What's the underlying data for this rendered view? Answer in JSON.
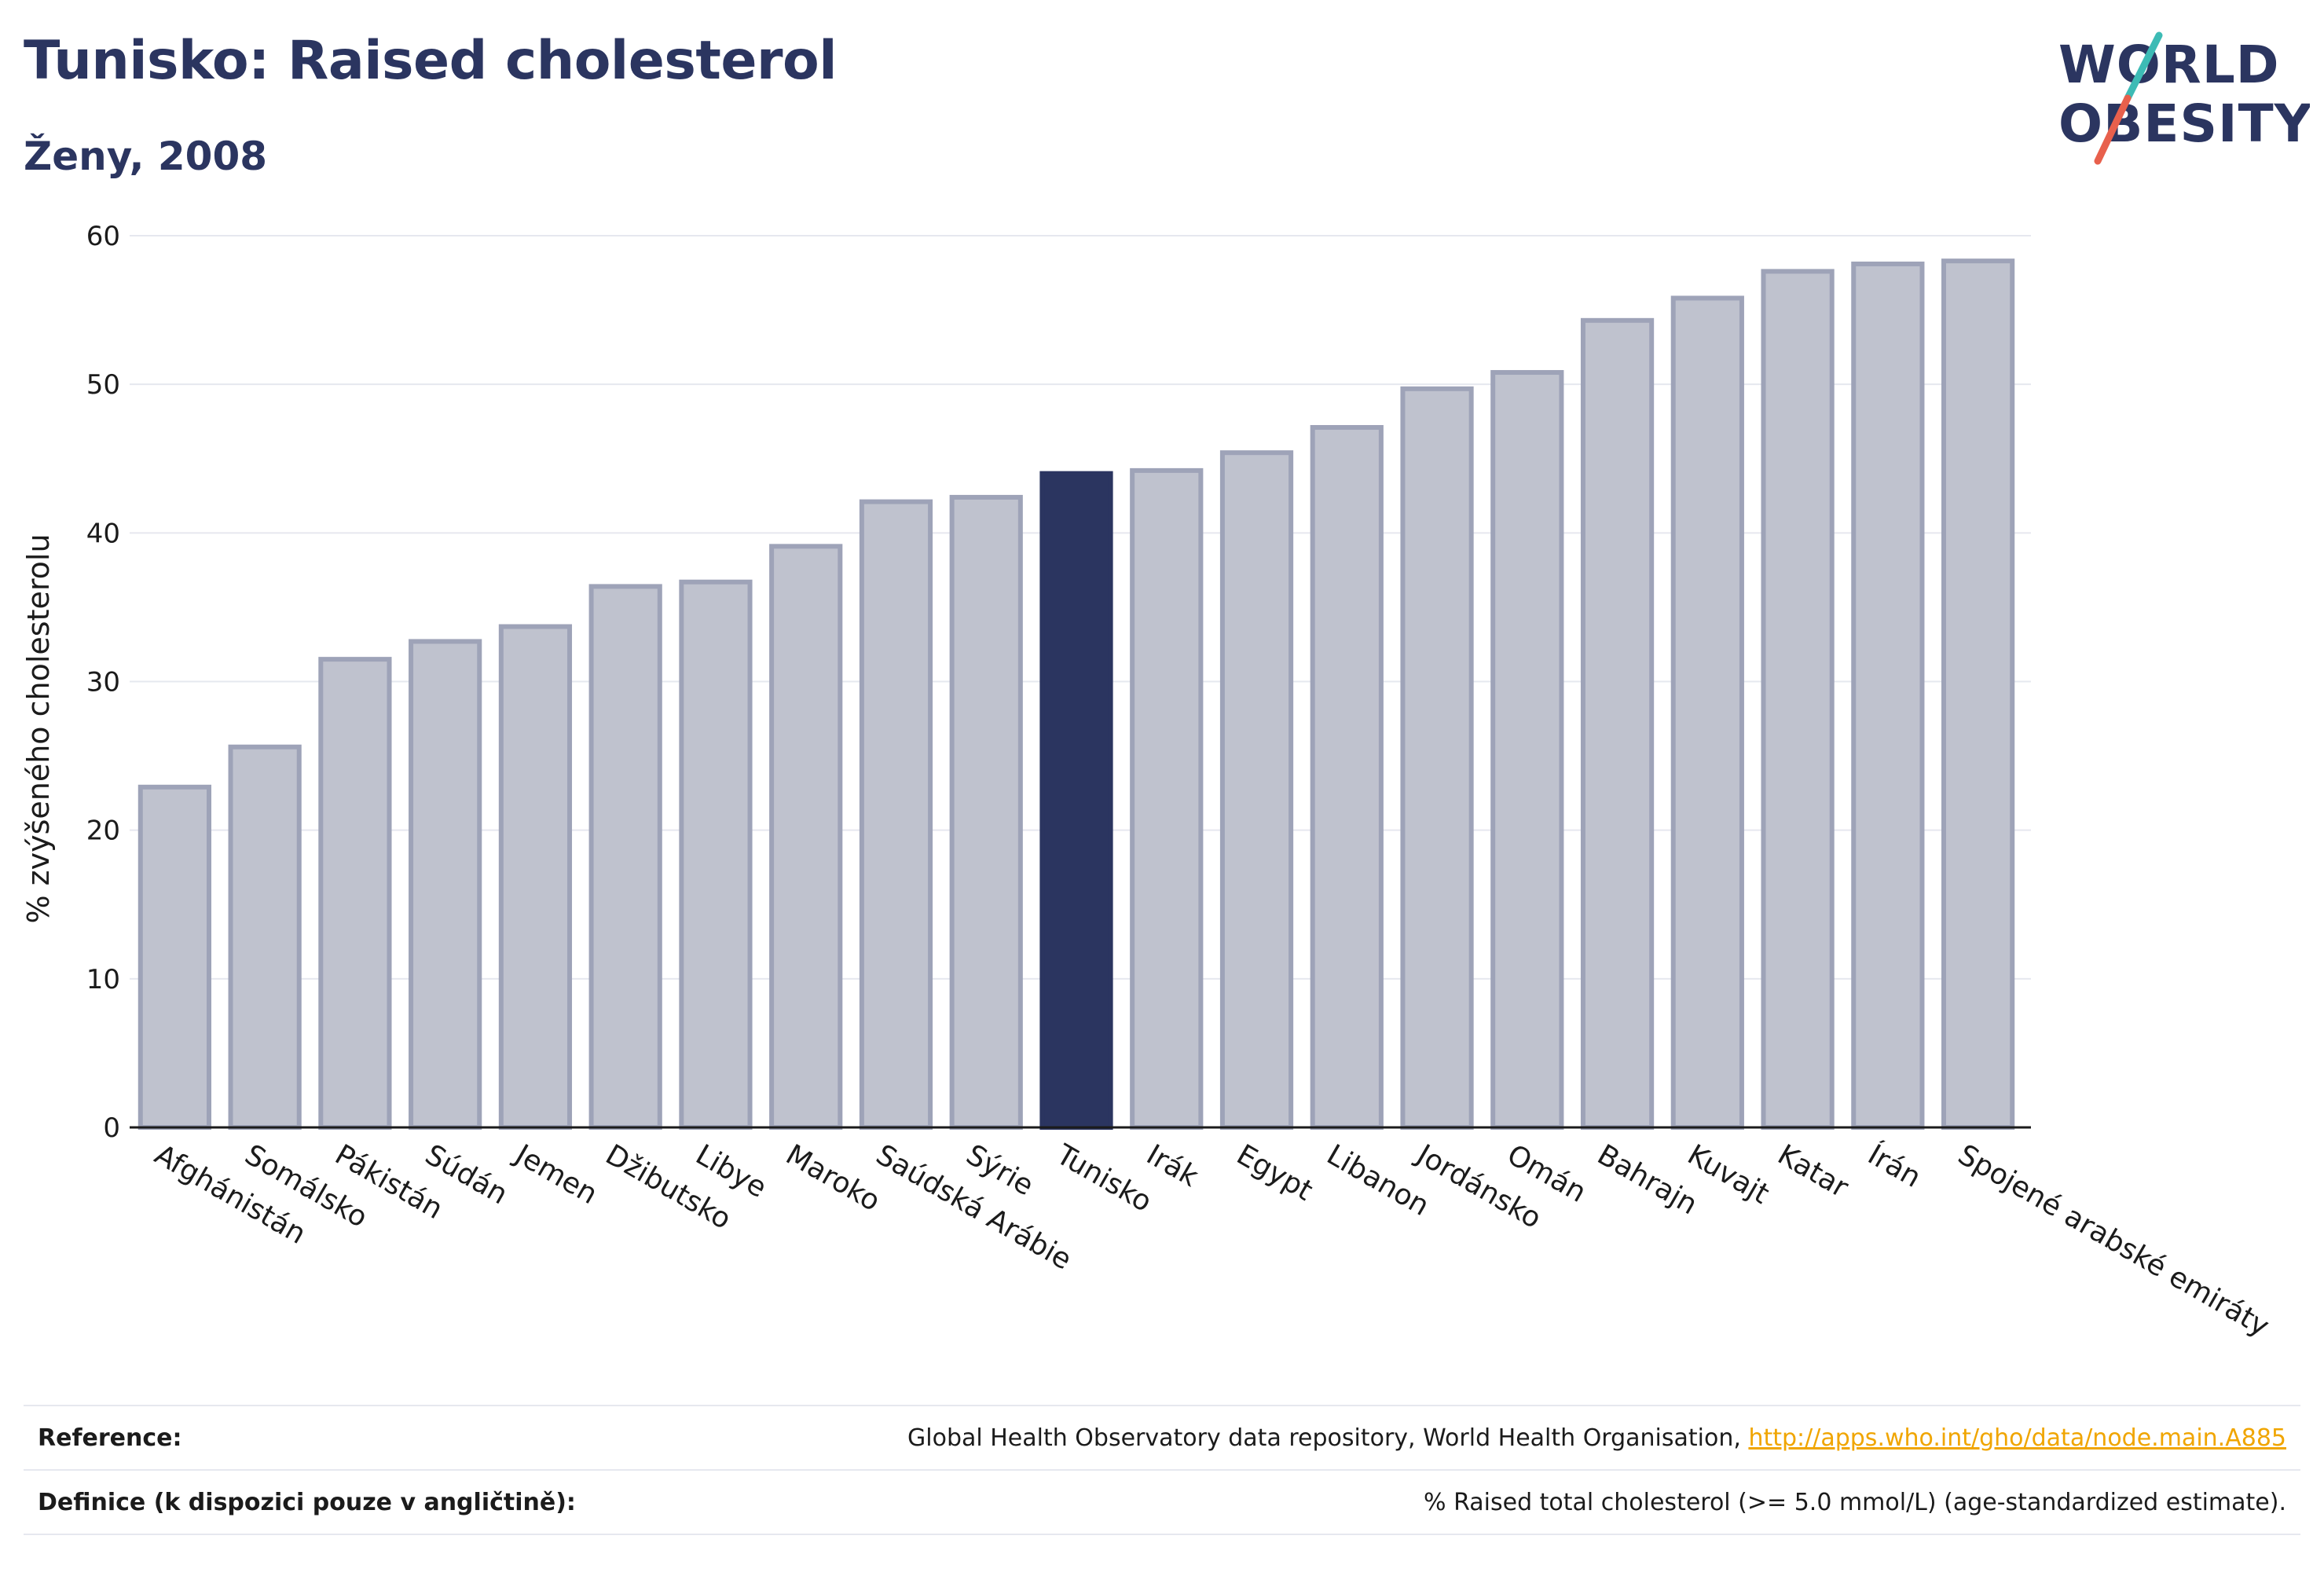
{
  "title": "Tunisko: Raised cholesterol",
  "subtitle": "Ženy, 2008",
  "logo": {
    "line1": "WORLD",
    "line2": "OBESITY",
    "accent_colors": [
      "#3dbbb5",
      "#e8604c"
    ]
  },
  "colors": {
    "bar": "#bfc2ce",
    "bar_stroke": "#9ea3b8",
    "highlight": "#2b3560",
    "grid": "#e6e8ef",
    "link": "#f0a500"
  },
  "chart_data": {
    "type": "bar",
    "ylabel": "% zvýšeného cholesterolu",
    "ylim": [
      0,
      60
    ],
    "yticks": [
      0,
      10,
      20,
      30,
      40,
      50,
      60
    ],
    "highlight": "Tunisko",
    "grid": true,
    "categories": [
      "Afghánistán",
      "Somálsko",
      "Pákistán",
      "Súdán",
      "Jemen",
      "Džibutsko",
      "Libye",
      "Maroko",
      "Saúdská Arábie",
      "Sýrie",
      "Tunisko",
      "Irák",
      "Egypt",
      "Libanon",
      "Jordánsko",
      "Omán",
      "Bahrajn",
      "Kuvajt",
      "Katar",
      "Írán",
      "Spojené arabské emiráty"
    ],
    "values": [
      22.9,
      25.6,
      31.5,
      32.7,
      33.7,
      36.4,
      36.7,
      39.1,
      42.1,
      42.4,
      44.0,
      44.2,
      45.4,
      47.1,
      49.7,
      50.8,
      54.3,
      55.8,
      57.6,
      58.1,
      58.3
    ]
  },
  "footer": {
    "reference_label": "Reference:",
    "reference_text": "Global Health Observatory data repository, World Health Organisation, ",
    "reference_link": "http://apps.who.int/gho/data/node.main.A885",
    "definition_label": "Definice (k dispozici pouze v angličtině):",
    "definition_text": "% Raised total cholesterol (>= 5.0 mmol/L) (age-standardized estimate)."
  }
}
